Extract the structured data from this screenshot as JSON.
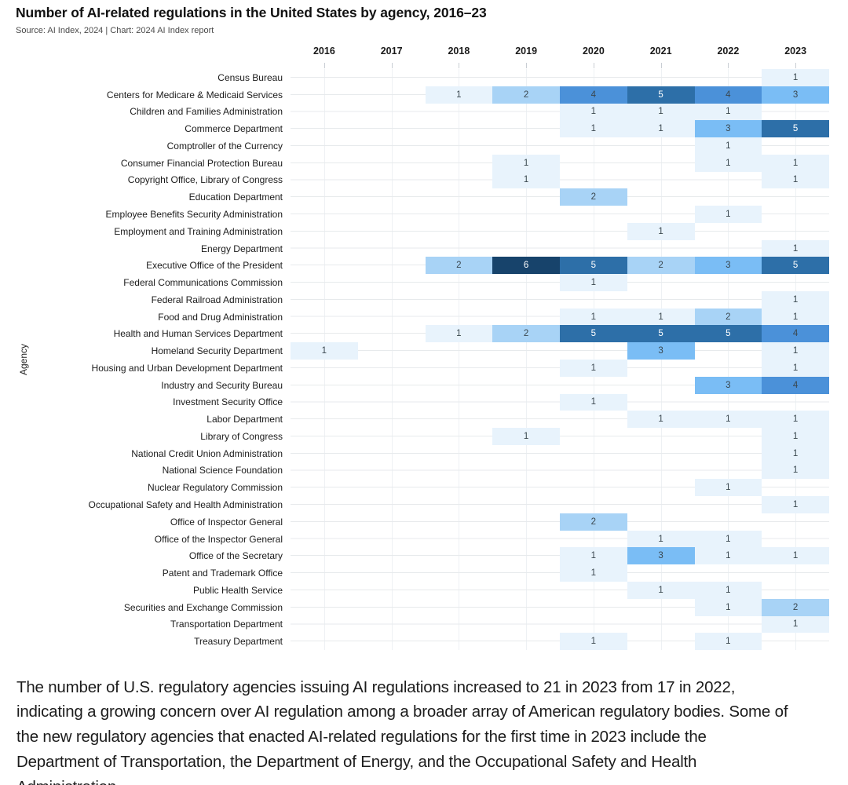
{
  "header": {
    "title": "Number of AI-related regulations in the United States by agency, 2016–23",
    "source": "Source: AI Index, 2024 | Chart: 2024 AI Index report"
  },
  "caption": "The number of U.S. regulatory agencies issuing AI regulations increased to 21 in 2023 from 17 in 2022, indicating a growing concern over AI regulation among a broader array of American regulatory bodies. Some of the new regulatory agencies that enacted AI-related regulations for the first time in 2023 include the Department of Transportation, the Department of Energy, and the Occupational Safety and Health Administration.",
  "chart_data": {
    "type": "heatmap",
    "title": "Number of AI-related regulations in the United States by agency, 2016–23",
    "xlabel": "",
    "ylabel": "Agency",
    "grid": true,
    "legend": false,
    "years": [
      "2016",
      "2017",
      "2018",
      "2019",
      "2020",
      "2021",
      "2022",
      "2023"
    ],
    "rows": [
      {
        "agency": "Census Bureau",
        "values": [
          null,
          null,
          null,
          null,
          null,
          null,
          null,
          1
        ]
      },
      {
        "agency": "Centers for Medicare & Medicaid Services",
        "values": [
          null,
          null,
          1,
          2,
          4,
          5,
          4,
          3
        ]
      },
      {
        "agency": "Children and Families Administration",
        "values": [
          null,
          null,
          null,
          null,
          1,
          1,
          1,
          null
        ]
      },
      {
        "agency": "Commerce Department",
        "values": [
          null,
          null,
          null,
          null,
          1,
          1,
          3,
          5
        ]
      },
      {
        "agency": "Comptroller of the Currency",
        "values": [
          null,
          null,
          null,
          null,
          null,
          null,
          1,
          null
        ]
      },
      {
        "agency": "Consumer Financial Protection Bureau",
        "values": [
          null,
          null,
          null,
          1,
          null,
          null,
          1,
          1
        ]
      },
      {
        "agency": "Copyright Office, Library of Congress",
        "values": [
          null,
          null,
          null,
          1,
          null,
          null,
          null,
          1
        ]
      },
      {
        "agency": "Education Department",
        "values": [
          null,
          null,
          null,
          null,
          2,
          null,
          null,
          null
        ]
      },
      {
        "agency": "Employee Benefits Security Administration",
        "values": [
          null,
          null,
          null,
          null,
          null,
          null,
          1,
          null
        ]
      },
      {
        "agency": "Employment and Training Administration",
        "values": [
          null,
          null,
          null,
          null,
          null,
          1,
          null,
          null
        ]
      },
      {
        "agency": "Energy Department",
        "values": [
          null,
          null,
          null,
          null,
          null,
          null,
          null,
          1
        ]
      },
      {
        "agency": "Executive Office of the President",
        "values": [
          null,
          null,
          2,
          6,
          5,
          2,
          3,
          5
        ]
      },
      {
        "agency": "Federal Communications Commission",
        "values": [
          null,
          null,
          null,
          null,
          1,
          null,
          null,
          null
        ]
      },
      {
        "agency": "Federal Railroad Administration",
        "values": [
          null,
          null,
          null,
          null,
          null,
          null,
          null,
          1
        ]
      },
      {
        "agency": "Food and Drug Administration",
        "values": [
          null,
          null,
          null,
          null,
          1,
          1,
          2,
          1
        ]
      },
      {
        "agency": "Health and Human Services Department",
        "values": [
          null,
          null,
          1,
          2,
          5,
          5,
          5,
          4
        ]
      },
      {
        "agency": "Homeland Security Department",
        "values": [
          1,
          null,
          null,
          null,
          null,
          3,
          null,
          1
        ]
      },
      {
        "agency": "Housing and Urban Development Department",
        "values": [
          null,
          null,
          null,
          null,
          1,
          null,
          null,
          1
        ]
      },
      {
        "agency": "Industry and Security Bureau",
        "values": [
          null,
          null,
          null,
          null,
          null,
          null,
          3,
          4
        ]
      },
      {
        "agency": "Investment Security Office",
        "values": [
          null,
          null,
          null,
          null,
          1,
          null,
          null,
          null
        ]
      },
      {
        "agency": "Labor Department",
        "values": [
          null,
          null,
          null,
          null,
          null,
          1,
          1,
          1
        ]
      },
      {
        "agency": "Library of Congress",
        "values": [
          null,
          null,
          null,
          1,
          null,
          null,
          null,
          1
        ]
      },
      {
        "agency": "National Credit Union Administration",
        "values": [
          null,
          null,
          null,
          null,
          null,
          null,
          null,
          1
        ]
      },
      {
        "agency": "National Science Foundation",
        "values": [
          null,
          null,
          null,
          null,
          null,
          null,
          null,
          1
        ]
      },
      {
        "agency": "Nuclear Regulatory Commission",
        "values": [
          null,
          null,
          null,
          null,
          null,
          null,
          1,
          null
        ]
      },
      {
        "agency": "Occupational Safety and Health Administration",
        "values": [
          null,
          null,
          null,
          null,
          null,
          null,
          null,
          1
        ]
      },
      {
        "agency": "Office of Inspector General",
        "values": [
          null,
          null,
          null,
          null,
          2,
          null,
          null,
          null
        ]
      },
      {
        "agency": "Office of the Inspector General",
        "values": [
          null,
          null,
          null,
          null,
          null,
          1,
          1,
          null
        ]
      },
      {
        "agency": "Office of the Secretary",
        "values": [
          null,
          null,
          null,
          null,
          1,
          3,
          1,
          1
        ]
      },
      {
        "agency": "Patent and Trademark Office",
        "values": [
          null,
          null,
          null,
          null,
          1,
          null,
          null,
          null
        ]
      },
      {
        "agency": "Public Health Service",
        "values": [
          null,
          null,
          null,
          null,
          null,
          1,
          1,
          null
        ]
      },
      {
        "agency": "Securities and Exchange Commission",
        "values": [
          null,
          null,
          null,
          null,
          null,
          null,
          1,
          2
        ]
      },
      {
        "agency": "Transportation Department",
        "values": [
          null,
          null,
          null,
          null,
          null,
          null,
          null,
          1
        ]
      },
      {
        "agency": "Treasury Department",
        "values": [
          null,
          null,
          null,
          null,
          1,
          null,
          1,
          null
        ]
      }
    ],
    "value_colors": {
      "1": "#e8f3fc",
      "2": "#a8d3f6",
      "3": "#7abdf5",
      "4": "#4b91d9",
      "5": "#2d6fa8",
      "6": "#17436b"
    },
    "dark_text_color": "#3a474f",
    "light_text_color": "#ffffff",
    "white_text_from": 5
  }
}
